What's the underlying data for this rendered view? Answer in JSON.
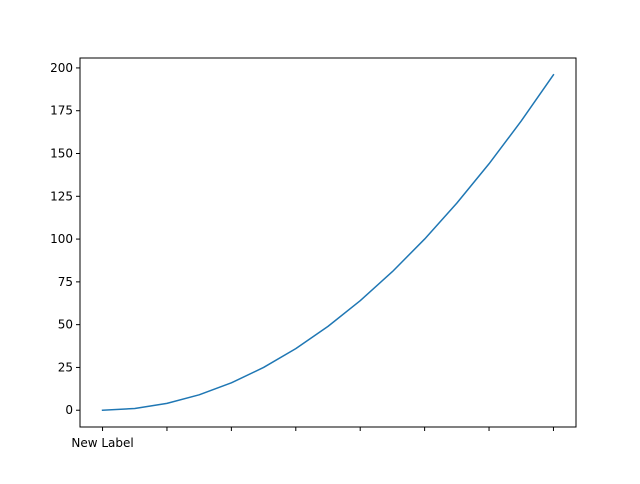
{
  "chart_data": {
    "type": "line",
    "title": "",
    "xlabel": "",
    "ylabel": "",
    "x": [
      0,
      1,
      2,
      3,
      4,
      5,
      6,
      7,
      8,
      9,
      10,
      11,
      12,
      13,
      14
    ],
    "series": [
      {
        "values": [
          0,
          1,
          4,
          9,
          16,
          25,
          36,
          49,
          64,
          81,
          100,
          121,
          144,
          169,
          196
        ],
        "color": "#1f77b4"
      }
    ],
    "xlim": [
      -0.7,
      14.7
    ],
    "ylim": [
      -9.8,
      205.8
    ],
    "xticks": [
      0,
      2,
      4,
      6,
      8,
      10,
      12,
      14
    ],
    "xtick_labels": [
      "New Label",
      "",
      "",
      "",
      "",
      "",
      "",
      ""
    ],
    "yticks": [
      0,
      25,
      50,
      75,
      100,
      125,
      150,
      175,
      200
    ],
    "ytick_labels": [
      "0",
      "25",
      "50",
      "75",
      "100",
      "125",
      "150",
      "175",
      "200"
    ],
    "grid": false,
    "legend": false
  }
}
